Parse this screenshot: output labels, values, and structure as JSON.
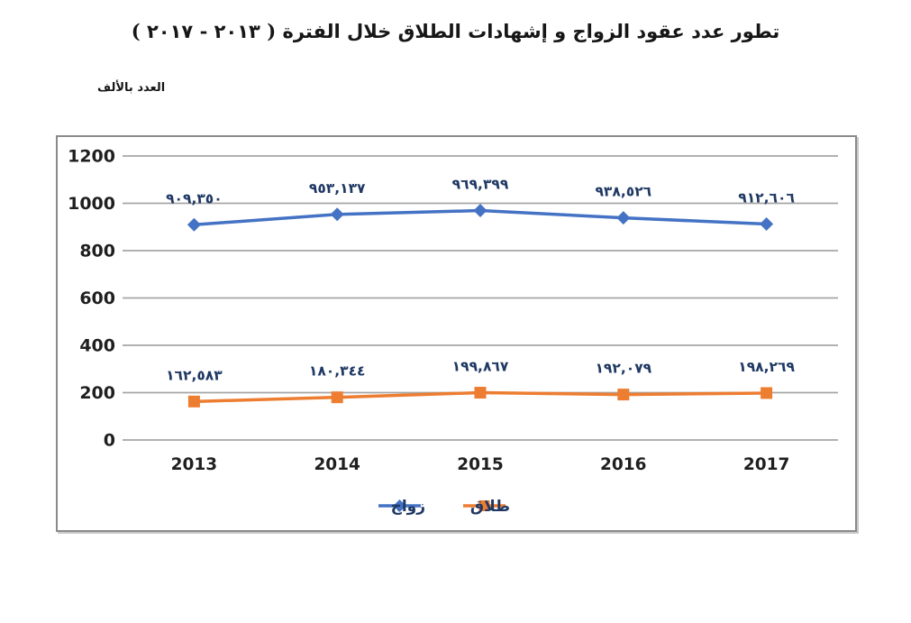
{
  "header": {
    "title": "تطور عدد عقود الزواج و إشهادات الطلاق خلال الفترة ( ٢٠١٣ - ٢٠١٧ )",
    "unit_label": "العدد بالألف"
  },
  "chart_data": {
    "type": "line",
    "title": "تطور عدد عقود الزواج و إشهادات الطلاق خلال الفترة ( ٢٠١٣ - ٢٠١٧ )",
    "ylabel": "العدد بالألف",
    "xlabel": "",
    "categories": [
      "2013",
      "2014",
      "2015",
      "2016",
      "2017"
    ],
    "series": [
      {
        "name": "زواج",
        "color": "#4472C4",
        "marker": "diamond",
        "values": [
          909.35,
          953.137,
          969.399,
          938.526,
          912.606
        ],
        "point_labels": [
          "٩٠٩,٣٥٠",
          "٩٥٣,١٣٧",
          "٩٦٩,٣٩٩",
          "٩٣٨,٥٢٦",
          "٩١٢,٦٠٦"
        ]
      },
      {
        "name": "طلاق",
        "color": "#ED7D31",
        "marker": "square",
        "values": [
          162.583,
          180.344,
          199.867,
          192.079,
          198.269
        ],
        "point_labels": [
          "١٦٢,٥٨٣",
          "١٨٠,٣٤٤",
          "١٩٩,٨٦٧",
          "١٩٢,٠٧٩",
          "١٩٨,٢٦٩"
        ]
      }
    ],
    "y_ticks": [
      0,
      200,
      400,
      600,
      800,
      1000,
      1200
    ],
    "ylim": [
      0,
      1200
    ],
    "unit": "thousands",
    "grid": true,
    "legend_position": "bottom-center"
  },
  "colors": {
    "series_marriage": "#4472C4",
    "series_divorce": "#ED7D31",
    "gridline": "#A6A6A6",
    "chart_border": "#8A8A8A",
    "axis_text": "#1F1F1F",
    "data_label_text": "#1F3864",
    "legend_text": "#1F3864"
  }
}
